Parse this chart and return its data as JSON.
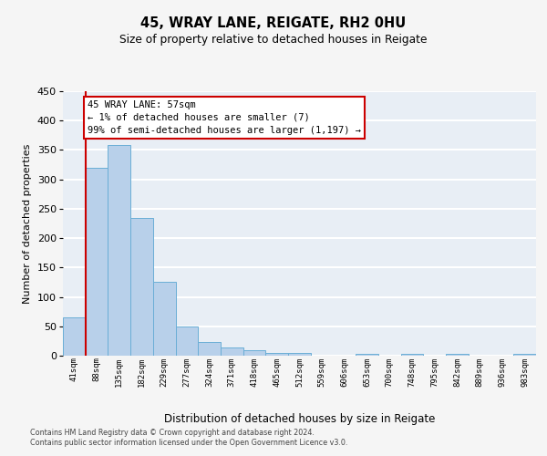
{
  "title1": "45, WRAY LANE, REIGATE, RH2 0HU",
  "title2": "Size of property relative to detached houses in Reigate",
  "xlabel": "Distribution of detached houses by size in Reigate",
  "ylabel": "Number of detached properties",
  "bar_values": [
    65,
    320,
    358,
    234,
    125,
    50,
    23,
    14,
    9,
    5,
    5,
    0,
    0,
    3,
    0,
    3,
    0,
    3,
    0,
    0,
    3
  ],
  "bar_labels": [
    "41sqm",
    "88sqm",
    "135sqm",
    "182sqm",
    "229sqm",
    "277sqm",
    "324sqm",
    "371sqm",
    "418sqm",
    "465sqm",
    "512sqm",
    "559sqm",
    "606sqm",
    "653sqm",
    "700sqm",
    "748sqm",
    "795sqm",
    "842sqm",
    "889sqm",
    "936sqm",
    "983sqm"
  ],
  "bar_color": "#b8d0ea",
  "bar_edge_color": "#6aaed6",
  "annotation_text": "45 WRAY LANE: 57sqm\n← 1% of detached houses are smaller (7)\n99% of semi-detached houses are larger (1,197) →",
  "annotation_box_color": "#ffffff",
  "annotation_box_edge_color": "#cc0000",
  "vline_color": "#cc0000",
  "vline_x": 0.5,
  "ylim": [
    0,
    450
  ],
  "yticks": [
    0,
    50,
    100,
    150,
    200,
    250,
    300,
    350,
    400,
    450
  ],
  "bg_color": "#e8eef5",
  "grid_color": "#ffffff",
  "fig_bg_color": "#f5f5f5",
  "footer1": "Contains HM Land Registry data © Crown copyright and database right 2024.",
  "footer2": "Contains public sector information licensed under the Open Government Licence v3.0."
}
